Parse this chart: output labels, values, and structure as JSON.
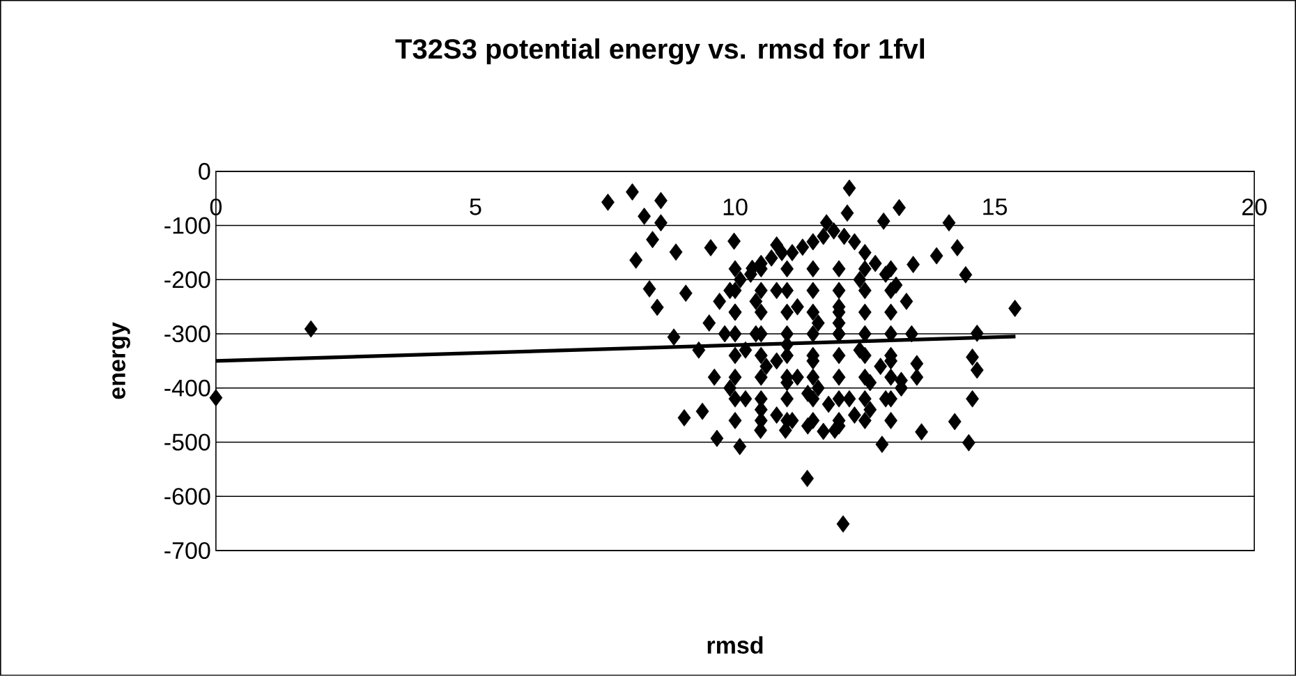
{
  "chart_data": {
    "type": "scatter",
    "title": "T32S3 potential energy vs. rmsd for 1fvl",
    "xlabel": "rmsd",
    "ylabel": "energy",
    "xlim": [
      0,
      20
    ],
    "xticks": [
      0,
      5,
      10,
      15,
      20
    ],
    "ylim": [
      -700,
      0
    ],
    "yticks": [
      -700,
      -600,
      -500,
      -400,
      -300,
      -200,
      -100,
      0
    ],
    "grid": "y",
    "legend": false,
    "marker": "diamond",
    "series": [
      {
        "color": "#000000",
        "x": [
          10.0,
          10.0,
          10.0,
          10.0,
          10.0,
          10.0,
          10.0,
          10.0,
          10.5,
          10.5,
          10.5,
          10.5,
          10.5,
          10.5,
          10.5,
          10.5,
          11.0,
          11.0,
          11.0,
          11.0,
          11.0,
          11.0,
          11.0,
          11.0,
          11.5,
          11.5,
          11.5,
          11.5,
          11.5,
          11.5,
          11.5,
          11.5,
          12.0,
          12.0,
          12.0,
          12.0,
          12.0,
          12.0,
          12.0,
          12.0,
          12.5,
          12.5,
          12.5,
          12.5,
          12.5,
          12.5,
          12.5,
          12.5,
          13.0,
          13.0,
          13.0,
          13.0,
          13.0,
          13.0,
          13.0,
          13.0,
          0,
          1.83,
          7.55,
          8.02,
          8.57,
          8.25,
          8.57,
          8.41,
          8.09,
          8.86,
          8.35,
          8.5,
          8.82,
          9.05,
          9.02,
          9.37,
          9.65,
          9.53,
          9.98,
          10.33,
          10.8,
          10.49,
          10.09,
          11.39,
          12.08,
          12.2,
          12.16,
          12.86,
          13.16,
          13.88,
          14.12,
          14.28,
          14.44,
          15.39,
          14.66,
          14.66,
          14.57,
          14.57,
          14.23,
          14.5,
          13.59,
          12.83,
          11.92,
          10.97,
          11.76,
          13.43,
          13.2,
          13.5,
          9.3,
          9.5,
          9.7,
          9.9,
          10.1,
          10.3,
          10.5,
          10.7,
          10.9,
          11.1,
          11.3,
          11.5,
          11.7,
          11.9,
          12.1,
          12.3,
          12.5,
          12.7,
          12.9,
          13.1,
          13.3,
          9.6,
          9.9,
          10.2,
          10.5,
          10.8,
          11.1,
          11.4,
          11.7,
          12.0,
          12.3,
          12.6,
          12.9,
          13.2,
          13.5,
          9.8,
          10.2,
          10.6,
          11.0,
          11.4,
          11.8,
          12.2,
          12.6,
          13.0,
          13.4,
          10.0,
          10.4,
          10.8,
          11.2,
          11.6,
          12.0,
          12.4,
          12.8,
          10.4,
          10.8,
          11.2,
          11.6,
          12.0,
          12.4,
          11.0,
          11.5,
          12.0
        ],
        "values": [
          -180,
          -220,
          -260,
          -300,
          -340,
          -380,
          -420,
          -460,
          -180,
          -220,
          -260,
          -300,
          -340,
          -380,
          -420,
          -460,
          -180,
          -220,
          -260,
          -300,
          -340,
          -380,
          -420,
          -460,
          -180,
          -220,
          -260,
          -300,
          -340,
          -380,
          -420,
          -460,
          -180,
          -220,
          -260,
          -300,
          -340,
          -380,
          -420,
          -460,
          -180,
          -220,
          -260,
          -300,
          -340,
          -380,
          -420,
          -460,
          -180,
          -220,
          -260,
          -300,
          -340,
          -380,
          -420,
          -460,
          -418,
          -291,
          -57,
          -38,
          -54,
          -83,
          -95,
          -126,
          -164,
          -149,
          -217,
          -251,
          -306,
          -225,
          -455,
          -443,
          -493,
          -141,
          -129,
          -179,
          -136,
          -478,
          -508,
          -567,
          -651,
          -31,
          -77,
          -92,
          -67,
          -156,
          -95,
          -141,
          -191,
          -253,
          -299,
          -367,
          -343,
          -420,
          -462,
          -501,
          -481,
          -504,
          -478,
          -478,
          -95,
          -172,
          -386,
          -355,
          -330,
          -280,
          -240,
          -220,
          -200,
          -190,
          -170,
          -160,
          -150,
          -150,
          -140,
          -130,
          -120,
          -110,
          -120,
          -130,
          -150,
          -170,
          -190,
          -210,
          -240,
          -380,
          -400,
          -420,
          -440,
          -450,
          -460,
          -470,
          -480,
          -470,
          -450,
          -440,
          -420,
          -400,
          -380,
          -300,
          -330,
          -360,
          -390,
          -410,
          -430,
          -420,
          -390,
          -350,
          -300,
          -260,
          -240,
          -220,
          -250,
          -280,
          -300,
          -330,
          -360,
          -300,
          -350,
          -380,
          -400,
          -250,
          -200,
          -320,
          -350,
          -280
        ]
      },
      {
        "type": "line",
        "color": "#000000",
        "marker": "none",
        "x": [
          0,
          15.4
        ],
        "values": [
          -350,
          -305
        ]
      }
    ]
  }
}
